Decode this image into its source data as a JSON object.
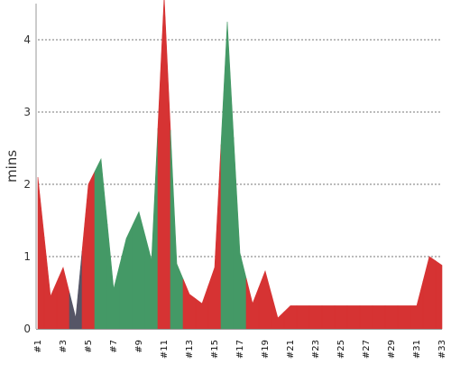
{
  "chart_data": {
    "type": "area",
    "ylabel": "mins",
    "xlabel": "",
    "title": "",
    "ylim": [
      0,
      4.5
    ],
    "grid": true,
    "yticks": [
      "0",
      "1",
      "2",
      "3",
      "4"
    ],
    "x": [
      "#1",
      "#2",
      "#3",
      "#4",
      "#5",
      "#6",
      "#7",
      "#8",
      "#9",
      "#10",
      "#11",
      "#12",
      "#13",
      "#14",
      "#15",
      "#16",
      "#17",
      "#18",
      "#19",
      "#20",
      "#21",
      "#22",
      "#23",
      "#24",
      "#25",
      "#26",
      "#27",
      "#28",
      "#29",
      "#30",
      "#31",
      "#32",
      "#33"
    ],
    "xtick_labels": [
      "#1",
      "#3",
      "#5",
      "#7",
      "#9",
      "#11",
      "#13",
      "#15",
      "#17",
      "#19",
      "#21",
      "#23",
      "#25",
      "#27",
      "#29",
      "#31",
      "#33"
    ],
    "values": [
      2.1,
      0.45,
      0.85,
      0.15,
      2.0,
      2.35,
      0.55,
      1.25,
      1.62,
      0.95,
      4.6,
      0.9,
      0.48,
      0.35,
      0.85,
      4.25,
      1.05,
      0.35,
      0.8,
      0.15,
      0.32,
      0.32,
      0.32,
      0.32,
      0.32,
      0.32,
      0.32,
      0.32,
      0.32,
      0.32,
      0.32,
      1.0,
      0.88
    ],
    "status": [
      "red",
      "red",
      "red",
      "gray",
      "red",
      "green",
      "green",
      "green",
      "green",
      "green",
      "red",
      "green",
      "red",
      "red",
      "red",
      "green",
      "green",
      "red",
      "red",
      "red",
      "red",
      "red",
      "red",
      "red",
      "red",
      "red",
      "red",
      "red",
      "red",
      "red",
      "red",
      "red",
      "red"
    ],
    "colors": {
      "red": "#d63333",
      "green": "#449966",
      "gray": "#555566",
      "grid": "#777777",
      "axis": "#999999"
    }
  }
}
